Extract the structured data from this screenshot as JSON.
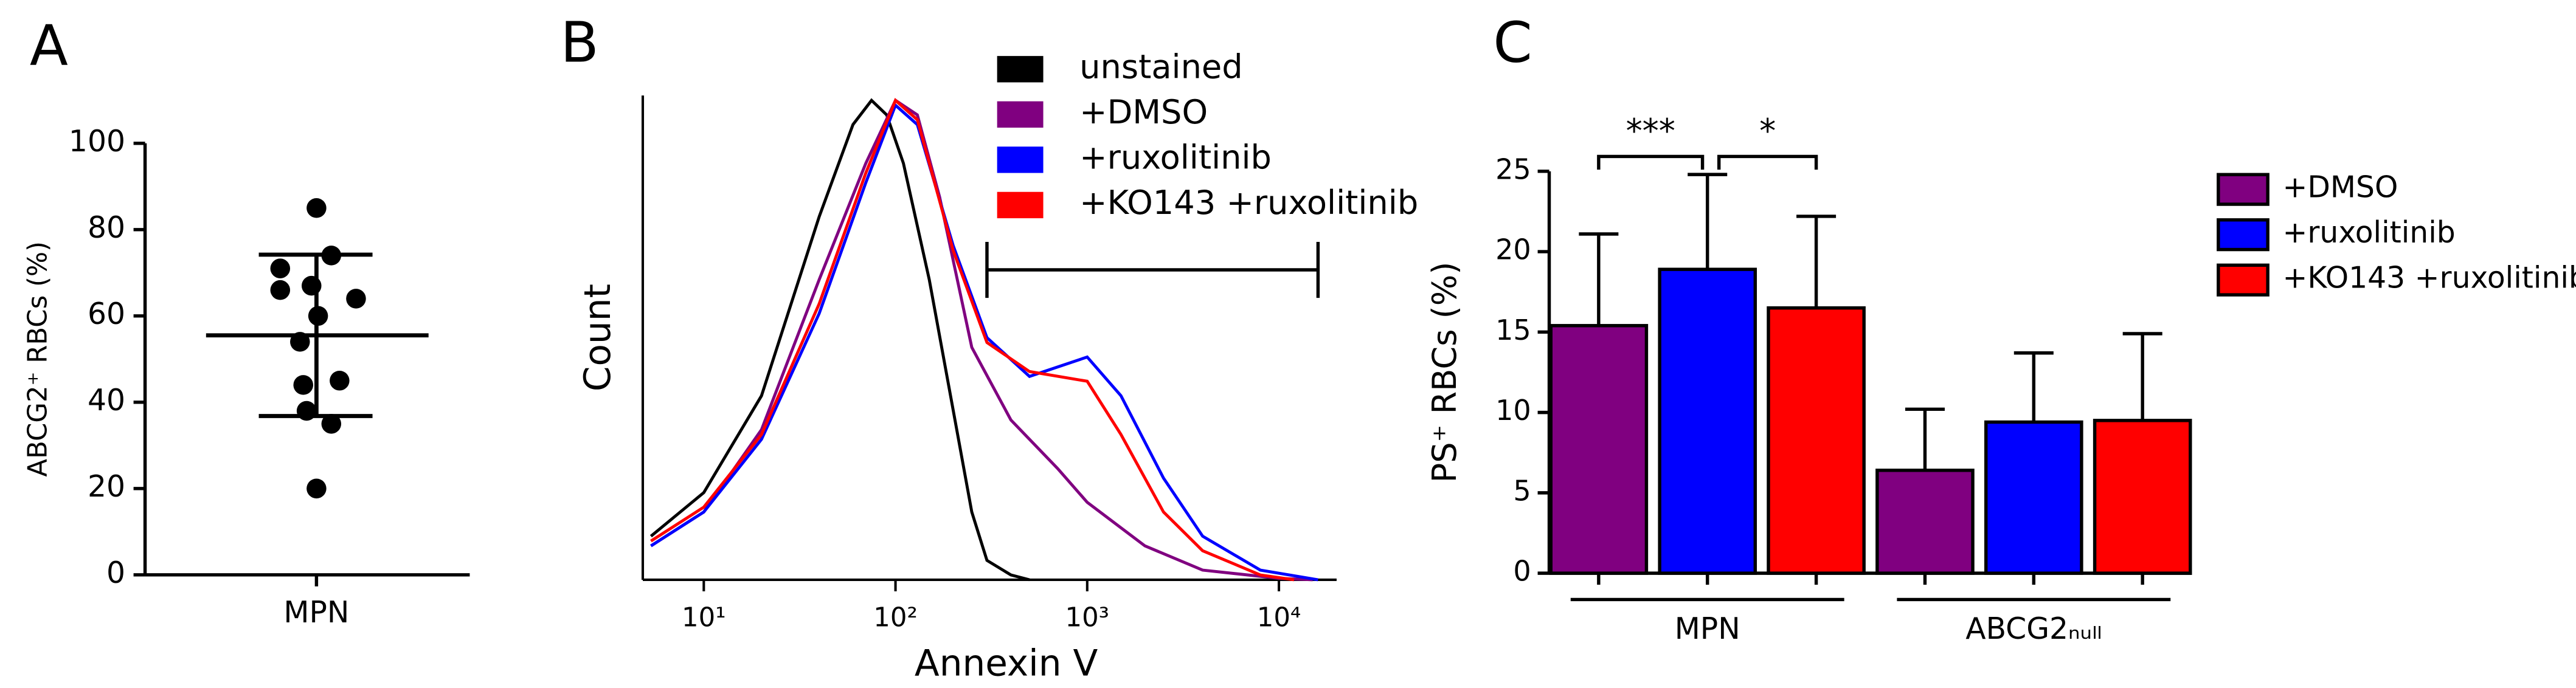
{
  "chart_data": [
    {
      "type": "scatter",
      "panel_label": "A",
      "y_label": "ABCG2⁺ RBCs (%)",
      "categories": [
        "MPN"
      ],
      "values": [
        85,
        74,
        71,
        67,
        66,
        64,
        60,
        54,
        45,
        44,
        38,
        35,
        20
      ],
      "mean": 55.5,
      "sd": 18.7,
      "color": "#000000",
      "ylim": [
        0,
        100
      ],
      "yticks": [
        0,
        20,
        40,
        60,
        80,
        100
      ]
    },
    {
      "type": "line",
      "panel_label": "B",
      "x_label": "Annexin V",
      "y_label": "Count",
      "xscale": "log",
      "xlim": [
        5,
        20000
      ],
      "xticks": [
        {
          "value": 10,
          "label": "10¹"
        },
        {
          "value": 100,
          "label": "10²"
        },
        {
          "value": 1000,
          "label": "10³"
        },
        {
          "value": 10000,
          "label": "10⁴"
        }
      ],
      "ylim": [
        0,
        100
      ],
      "legend": "top-right",
      "gate": {
        "x": [
          300,
          16000
        ],
        "y": 64
      },
      "series": [
        {
          "name": "unstained",
          "color": "#000000",
          "x": [
            5.3,
            10,
            20,
            40,
            60,
            75,
            90,
            110,
            150,
            200,
            250,
            300,
            400,
            500
          ],
          "values": [
            9,
            18,
            38,
            75,
            94,
            99,
            96,
            86,
            62,
            35,
            14,
            4,
            1,
            0
          ]
        },
        {
          "name": "+DMSO",
          "color": "#800080",
          "x": [
            5.3,
            10,
            20,
            40,
            70,
            100,
            130,
            170,
            250,
            400,
            700,
            1000,
            2000,
            4000,
            10000,
            15000
          ],
          "values": [
            7,
            14,
            31,
            62,
            86,
            99,
            96,
            79,
            48,
            33,
            23,
            16,
            7,
            2,
            0.3,
            0
          ]
        },
        {
          "name": "+ruxolitinib",
          "color": "#0000ff",
          "x": [
            5.3,
            10,
            20,
            40,
            70,
            100,
            130,
            200,
            300,
            500,
            1000,
            1500,
            2500,
            4000,
            8000,
            16000
          ],
          "values": [
            7,
            14,
            29,
            55,
            82,
            98,
            94,
            69,
            50,
            42,
            46,
            38,
            21,
            9,
            2,
            0
          ]
        },
        {
          "name": "+KO143 +ruxolitinib",
          "color": "#ff0000",
          "x": [
            5.3,
            10,
            20,
            40,
            70,
            100,
            130,
            200,
            300,
            500,
            1000,
            1500,
            2500,
            4000,
            8000,
            12000
          ],
          "values": [
            8,
            15,
            30,
            57,
            84,
            99,
            95,
            68,
            49,
            43,
            41,
            30,
            14,
            6,
            1,
            0
          ]
        }
      ]
    },
    {
      "type": "bar",
      "panel_label": "C",
      "y_label": "PS⁺ RBCs (%)",
      "categories": [
        "MPN",
        "ABCG2ₙᵤₗₗ"
      ],
      "ylim": [
        0,
        25
      ],
      "yticks": [
        0,
        5,
        10,
        15,
        20,
        25
      ],
      "legend": "right",
      "significance": [
        {
          "label": "***"
        },
        {
          "label": "*"
        }
      ],
      "series": [
        {
          "name": "+DMSO",
          "color": "#800080",
          "values": [
            15.4,
            6.4
          ],
          "errors": [
            5.7,
            3.8
          ]
        },
        {
          "name": "+ruxolitinib",
          "color": "#0000ff",
          "values": [
            18.9,
            9.4
          ],
          "errors": [
            5.9,
            4.3
          ]
        },
        {
          "name": "+KO143 +ruxolitinib",
          "color": "#ff0000",
          "values": [
            16.5,
            9.5
          ],
          "errors": [
            5.7,
            5.4
          ]
        }
      ]
    }
  ]
}
